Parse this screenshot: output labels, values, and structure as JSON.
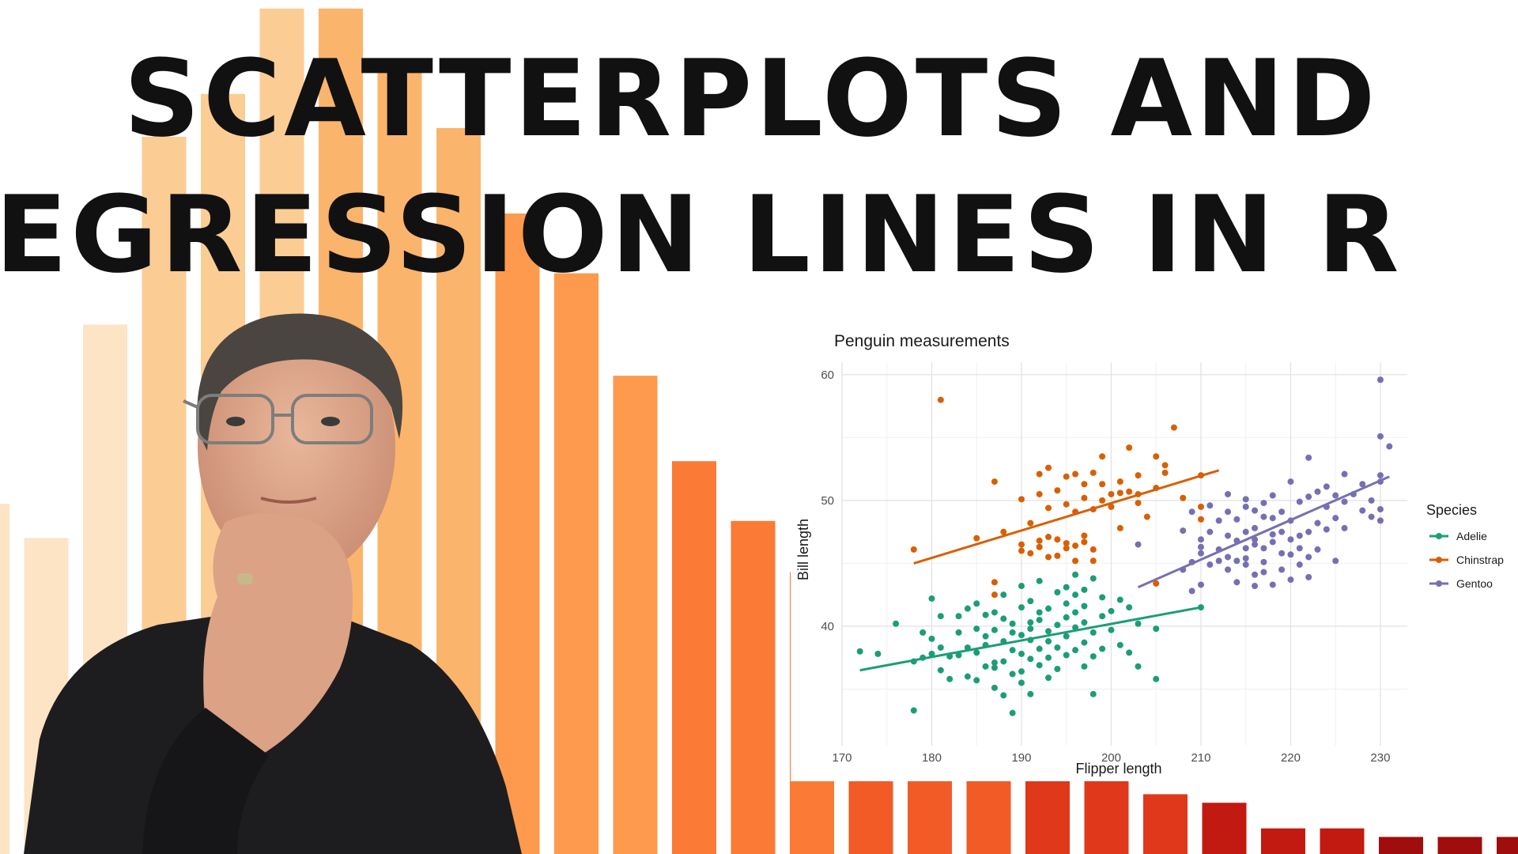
{
  "headline": {
    "line1": "SCATTERPLOTS AND",
    "line2": "REGRESSION LINES IN R"
  },
  "colors": {
    "headline": "#111111",
    "adelie": "#1b9e77",
    "chinstrap": "#d95f02",
    "gentoo": "#7570b3",
    "bar_gradient": [
      "#fce4c4",
      "#fbcd94",
      "#fbb46c",
      "#fd9a4e",
      "#fb7a35",
      "#f25a26",
      "#e0381a",
      "#c21a10",
      "#a00d0d"
    ]
  },
  "background_bars": {
    "type": "bar",
    "values": [
      41,
      37,
      62,
      84,
      89,
      99,
      99,
      92,
      85,
      75,
      68,
      56,
      46,
      39,
      33,
      9,
      9,
      9,
      9,
      9,
      7,
      6,
      3,
      3,
      2,
      2,
      2
    ]
  },
  "chart_data": {
    "type": "scatter",
    "title": "Penguin measurements",
    "xlabel": "Flipper length",
    "ylabel": "Bill length",
    "xlim": [
      170,
      233
    ],
    "ylim": [
      30.5,
      61
    ],
    "x_ticks": [
      170,
      180,
      190,
      200,
      210,
      220,
      230
    ],
    "y_ticks": [
      40,
      50,
      60
    ],
    "grid": true,
    "legend": {
      "title": "Species",
      "placement": "right"
    },
    "series": [
      {
        "name": "Adelie",
        "color": "#1b9e77",
        "regression": {
          "x": [
            172,
            210
          ],
          "y": [
            36.5,
            41.5
          ]
        },
        "points": [
          [
            172,
            38
          ],
          [
            174,
            37.8
          ],
          [
            176,
            40.2
          ],
          [
            178,
            33.3
          ],
          [
            178,
            37.2
          ],
          [
            179,
            39.5
          ],
          [
            179,
            37.5
          ],
          [
            180,
            42.2
          ],
          [
            180,
            39
          ],
          [
            180,
            37.8
          ],
          [
            181,
            40.8
          ],
          [
            181,
            36.5
          ],
          [
            181,
            38.3
          ],
          [
            182,
            37.6
          ],
          [
            182,
            35.8
          ],
          [
            183,
            37.7
          ],
          [
            183,
            40.8
          ],
          [
            183,
            39.5
          ],
          [
            184,
            38.3
          ],
          [
            184,
            36
          ],
          [
            184,
            41.4
          ],
          [
            185,
            39.8
          ],
          [
            185,
            37.9
          ],
          [
            185,
            35.7
          ],
          [
            185,
            41.8
          ],
          [
            186,
            39.2
          ],
          [
            186,
            36.8
          ],
          [
            186,
            40.9
          ],
          [
            186,
            38.5
          ],
          [
            187,
            37.1
          ],
          [
            187,
            39.7
          ],
          [
            187,
            41.1
          ],
          [
            187,
            35.1
          ],
          [
            187,
            36.7
          ],
          [
            188,
            38.8
          ],
          [
            188,
            40.6
          ],
          [
            188,
            37.2
          ],
          [
            188,
            42.5
          ],
          [
            188,
            34.5
          ],
          [
            189,
            39.5
          ],
          [
            189,
            36.2
          ],
          [
            189,
            40.2
          ],
          [
            189,
            33.1
          ],
          [
            189,
            38.1
          ],
          [
            190,
            41.5
          ],
          [
            190,
            39.3
          ],
          [
            190,
            37.8
          ],
          [
            190,
            36.4
          ],
          [
            190,
            43.2
          ],
          [
            190,
            35.5
          ],
          [
            191,
            40.3
          ],
          [
            191,
            38.9
          ],
          [
            191,
            42
          ],
          [
            191,
            37.4
          ],
          [
            191,
            39.8
          ],
          [
            191,
            34.6
          ],
          [
            192,
            41.1
          ],
          [
            192,
            38.2
          ],
          [
            192,
            36.9
          ],
          [
            192,
            40.5
          ],
          [
            192,
            43.6
          ],
          [
            193,
            39.6
          ],
          [
            193,
            37.5
          ],
          [
            193,
            41.4
          ],
          [
            193,
            38.8
          ],
          [
            193,
            35.9
          ],
          [
            194,
            40.1
          ],
          [
            194,
            42.7
          ],
          [
            194,
            38.3
          ],
          [
            194,
            36.6
          ],
          [
            195,
            41.8
          ],
          [
            195,
            39.2
          ],
          [
            195,
            37.7
          ],
          [
            195,
            43.1
          ],
          [
            195,
            40.7
          ],
          [
            196,
            42.5
          ],
          [
            196,
            39.9
          ],
          [
            196,
            38.1
          ],
          [
            196,
            44.1
          ],
          [
            196,
            41.1
          ],
          [
            197,
            40.3
          ],
          [
            197,
            42.9
          ],
          [
            197,
            38.7
          ],
          [
            197,
            36.8
          ],
          [
            197,
            41.6
          ],
          [
            198,
            39.5
          ],
          [
            198,
            43.8
          ],
          [
            198,
            37.6
          ],
          [
            198,
            34.6
          ],
          [
            199,
            40.8
          ],
          [
            199,
            42.3
          ],
          [
            199,
            38.2
          ],
          [
            200,
            41.2
          ],
          [
            200,
            39.7
          ],
          [
            201,
            38.5
          ],
          [
            201,
            42.1
          ],
          [
            202,
            37.9
          ],
          [
            202,
            41.5
          ],
          [
            203,
            36.8
          ],
          [
            203,
            40.2
          ],
          [
            205,
            35.8
          ],
          [
            205,
            39.8
          ],
          [
            210,
            41.5
          ]
        ]
      },
      {
        "name": "Chinstrap",
        "color": "#d95f02",
        "regression": {
          "x": [
            178,
            212
          ],
          "y": [
            45,
            52.4
          ]
        },
        "points": [
          [
            178,
            46.1
          ],
          [
            181,
            58
          ],
          [
            185,
            47
          ],
          [
            187,
            51.5
          ],
          [
            187,
            42.5
          ],
          [
            187,
            43.5
          ],
          [
            188,
            47.5
          ],
          [
            190,
            46.5
          ],
          [
            190,
            46
          ],
          [
            190,
            50.1
          ],
          [
            191,
            48.2
          ],
          [
            191,
            45.8
          ],
          [
            192,
            46.8
          ],
          [
            192,
            50.5
          ],
          [
            192,
            52.1
          ],
          [
            192,
            46.3
          ],
          [
            193,
            47.1
          ],
          [
            193,
            52.6
          ],
          [
            193,
            45.5
          ],
          [
            193,
            49.4
          ],
          [
            194,
            46.9
          ],
          [
            194,
            45.6
          ],
          [
            194,
            50.8
          ],
          [
            195,
            46.2
          ],
          [
            195,
            49.7
          ],
          [
            195,
            51.9
          ],
          [
            195,
            46.6
          ],
          [
            196,
            49.1
          ],
          [
            196,
            52.1
          ],
          [
            196,
            46.4
          ],
          [
            196,
            45.2
          ],
          [
            197,
            50.2
          ],
          [
            197,
            51.3
          ],
          [
            197,
            46.7
          ],
          [
            197,
            47.2
          ],
          [
            198,
            52.2
          ],
          [
            198,
            46.1
          ],
          [
            198,
            49.3
          ],
          [
            198,
            45.2
          ],
          [
            199,
            51.3
          ],
          [
            199,
            50
          ],
          [
            199,
            53.5
          ],
          [
            200,
            50.5
          ],
          [
            200,
            49.5
          ],
          [
            201,
            51.5
          ],
          [
            201,
            47.8
          ],
          [
            201,
            50.6
          ],
          [
            202,
            54.2
          ],
          [
            202,
            50.7
          ],
          [
            203,
            52
          ],
          [
            203,
            50.5
          ],
          [
            203,
            49.8
          ],
          [
            204,
            48.7
          ],
          [
            205,
            53.5
          ],
          [
            205,
            43.4
          ],
          [
            205,
            51
          ],
          [
            206,
            52.8
          ],
          [
            206,
            52.2
          ],
          [
            207,
            55.8
          ],
          [
            208,
            50.2
          ],
          [
            210,
            52
          ],
          [
            210,
            49.5
          ],
          [
            210,
            48.5
          ]
        ]
      },
      {
        "name": "Gentoo",
        "color": "#7570b3",
        "regression": {
          "x": [
            203,
            231
          ],
          "y": [
            43.1,
            51.9
          ]
        },
        "points": [
          [
            203,
            46.5
          ],
          [
            208,
            47.6
          ],
          [
            208,
            44.5
          ],
          [
            209,
            42.8
          ],
          [
            209,
            45.1
          ],
          [
            209,
            49.1
          ],
          [
            210,
            45.8
          ],
          [
            210,
            46.3
          ],
          [
            210,
            43.3
          ],
          [
            210,
            46.9
          ],
          [
            211,
            47.5
          ],
          [
            211,
            49.6
          ],
          [
            211,
            44.9
          ],
          [
            212,
            45.2
          ],
          [
            212,
            48.4
          ],
          [
            212,
            46.1
          ],
          [
            213,
            47.2
          ],
          [
            213,
            44.5
          ],
          [
            213,
            49.1
          ],
          [
            213,
            45.5
          ],
          [
            213,
            50.5
          ],
          [
            214,
            46.8
          ],
          [
            214,
            48.5
          ],
          [
            214,
            45.2
          ],
          [
            214,
            43.5
          ],
          [
            215,
            46.2
          ],
          [
            215,
            49.5
          ],
          [
            215,
            47.5
          ],
          [
            215,
            45.4
          ],
          [
            215,
            50.1
          ],
          [
            215,
            44.9
          ],
          [
            216,
            47.8
          ],
          [
            216,
            46.5
          ],
          [
            216,
            49.2
          ],
          [
            216,
            44.1
          ],
          [
            216,
            43.2
          ],
          [
            216,
            46.9
          ],
          [
            217,
            46.2
          ],
          [
            217,
            48.7
          ],
          [
            217,
            45.1
          ],
          [
            217,
            49.8
          ],
          [
            217,
            44.3
          ],
          [
            218,
            47.3
          ],
          [
            218,
            50.4
          ],
          [
            218,
            46.7
          ],
          [
            218,
            43.3
          ],
          [
            218,
            48.6
          ],
          [
            219,
            45.8
          ],
          [
            219,
            47.5
          ],
          [
            219,
            49.1
          ],
          [
            219,
            44.5
          ],
          [
            220,
            46.9
          ],
          [
            220,
            48.4
          ],
          [
            220,
            51.5
          ],
          [
            220,
            45.7
          ],
          [
            220,
            43.7
          ],
          [
            221,
            47.2
          ],
          [
            221,
            49.9
          ],
          [
            221,
            44.9
          ],
          [
            221,
            46.2
          ],
          [
            222,
            50.3
          ],
          [
            222,
            47.5
          ],
          [
            222,
            45.5
          ],
          [
            222,
            53.4
          ],
          [
            222,
            43.9
          ],
          [
            223,
            48.2
          ],
          [
            223,
            50.7
          ],
          [
            223,
            46.1
          ],
          [
            224,
            49.5
          ],
          [
            224,
            47.7
          ],
          [
            224,
            51.1
          ],
          [
            225,
            48.6
          ],
          [
            225,
            50.4
          ],
          [
            225,
            45.2
          ],
          [
            226,
            49.9
          ],
          [
            226,
            52.1
          ],
          [
            226,
            47.8
          ],
          [
            227,
            50.5
          ],
          [
            228,
            49.2
          ],
          [
            228,
            51.3
          ],
          [
            229,
            50
          ],
          [
            229,
            48.7
          ],
          [
            230,
            55.1
          ],
          [
            230,
            52
          ],
          [
            230,
            49.3
          ],
          [
            230,
            51.5
          ],
          [
            230,
            59.6
          ],
          [
            230,
            48.4
          ],
          [
            231,
            54.3
          ]
        ]
      }
    ]
  }
}
